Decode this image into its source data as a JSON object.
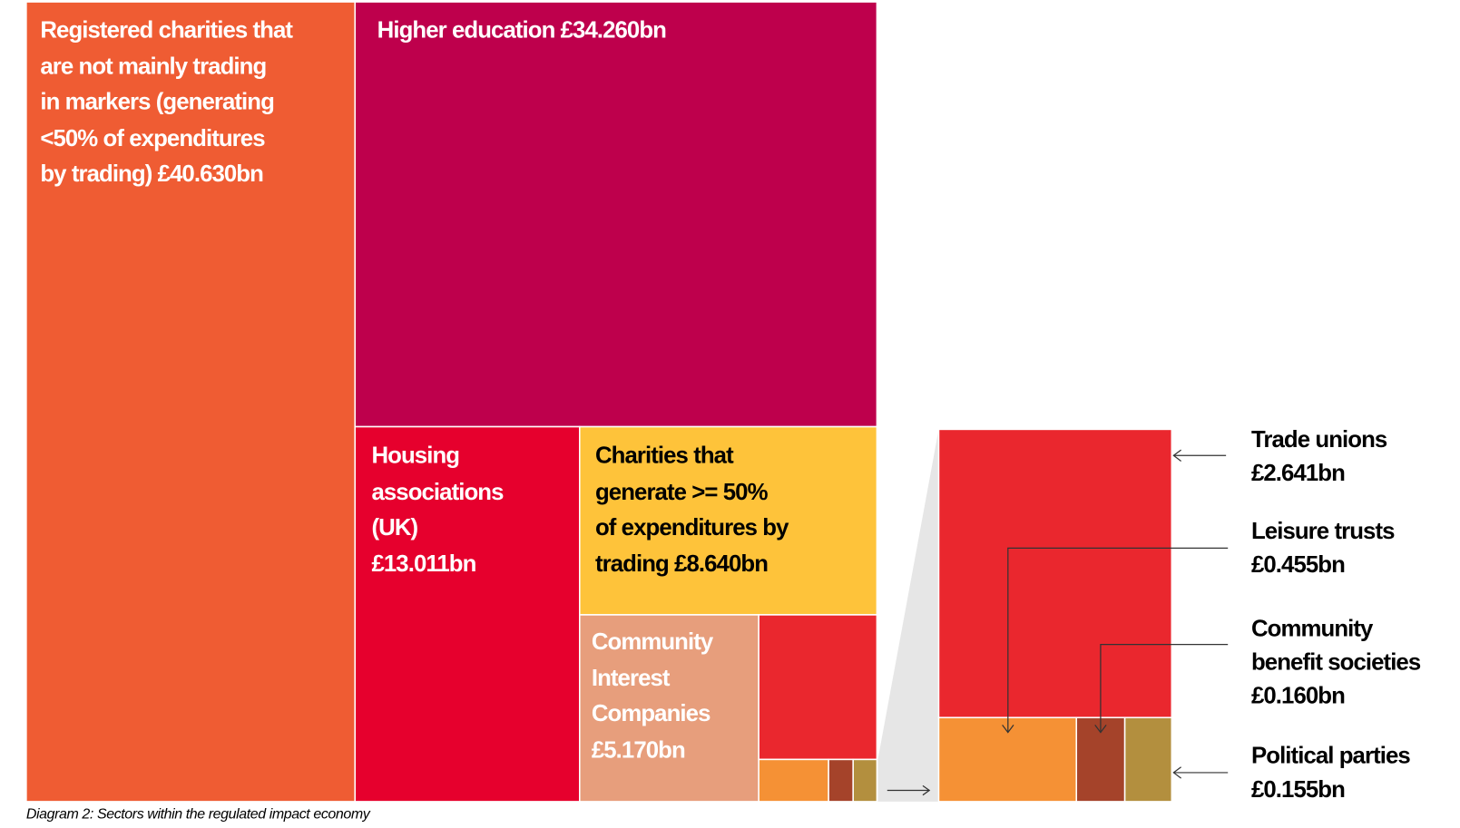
{
  "chart_data": {
    "type": "treemap",
    "caption": "Diagram 2: Sectors within the regulated impact economy",
    "colors": {
      "registered_charities": "#EF5C33",
      "higher_education": "#BE004C",
      "housing": "#E6002D",
      "trading_charities": "#FEC33A",
      "cic": "#E79E7C",
      "trade_unions": "#EA272E",
      "leisure_trusts": "#F59135",
      "community_benefit": "#A5432A",
      "political_parties": "#B38F3E",
      "zoom_band": "#E6E6E6"
    },
    "items": [
      {
        "key": "registered_charities",
        "lines": [
          "Registered charities that",
          "are not mainly trading",
          "in markers (generating",
          "<50% of expenditures",
          "by trading) £40.630bn"
        ],
        "value": 40.63
      },
      {
        "key": "higher_education",
        "lines": [
          "Higher education £34.260bn"
        ],
        "value": 34.26
      },
      {
        "key": "housing",
        "lines": [
          "Housing",
          "associations",
          "(UK)",
          "£13.011bn"
        ],
        "value": 13.011
      },
      {
        "key": "trading_charities",
        "lines": [
          "Charities that",
          "generate >= 50%",
          "of expenditures by",
          "trading £8.640bn"
        ],
        "value": 8.64
      },
      {
        "key": "cic",
        "lines": [
          "Community",
          "Interest",
          "Companies",
          "£5.170bn"
        ],
        "value": 5.17
      },
      {
        "key": "trade_unions",
        "lines": [
          "Trade unions",
          "£2.641bn"
        ],
        "value": 2.641
      },
      {
        "key": "leisure_trusts",
        "lines": [
          "Leisure trusts",
          "£0.455bn"
        ],
        "value": 0.455
      },
      {
        "key": "community_benefit",
        "lines": [
          "Community",
          "benefit societies",
          "£0.160bn"
        ],
        "value": 0.16
      },
      {
        "key": "political_parties",
        "lines": [
          "Political parties",
          "£0.155bn"
        ],
        "value": 0.155
      }
    ],
    "unit": "£bn"
  }
}
